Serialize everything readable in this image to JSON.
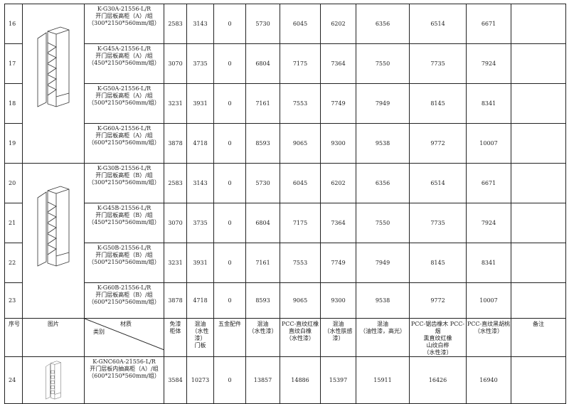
{
  "groups": [
    {
      "image": "open-shelf-tall-cabinet-a",
      "rows": [
        {
          "seq": "16",
          "name": "K-G30A-21556-L/R\n开门层板高柜（A）/组\n（300*2150*560mm/组）",
          "v": [
            "2583",
            "3143",
            "0",
            "5730",
            "6045",
            "6202",
            "6356",
            "6514",
            "6671",
            ""
          ]
        },
        {
          "seq": "17",
          "name": "K-G45A-21556-L/R\n开门层板高柜（A）/组\n（450*2150*560mm/组）",
          "v": [
            "3070",
            "3735",
            "0",
            "6804",
            "7175",
            "7364",
            "7550",
            "7735",
            "7924",
            ""
          ]
        },
        {
          "seq": "18",
          "name": "K-G50A-21556-L/R\n开门层板高柜（A）/组\n（500*2150*560mm/组）",
          "v": [
            "3231",
            "3931",
            "0",
            "7161",
            "7553",
            "7749",
            "7949",
            "8145",
            "8341",
            ""
          ]
        },
        {
          "seq": "19",
          "name": "K-G60A-21556-L/R\n开门层板高柜（A）/组\n（600*2150*560mm/组）",
          "v": [
            "3878",
            "4718",
            "0",
            "8593",
            "9065",
            "9300",
            "9538",
            "9772",
            "10007",
            ""
          ]
        }
      ]
    },
    {
      "image": "open-shelf-tall-cabinet-b",
      "rows": [
        {
          "seq": "20",
          "name": "K-G30B-21556-L/R\n开门层板高柜（B）/组\n（300*2150*560mm/组）",
          "v": [
            "2583",
            "3143",
            "0",
            "5730",
            "6045",
            "6202",
            "6356",
            "6514",
            "6671",
            ""
          ]
        },
        {
          "seq": "21",
          "name": "K-G45B-21556-L/R\n开门层板高柜（B）/组\n（450*2150*560mm/组）",
          "v": [
            "3070",
            "3735",
            "0",
            "6804",
            "7175",
            "7364",
            "7550",
            "7735",
            "7924",
            ""
          ]
        },
        {
          "seq": "22",
          "name": "K-G50B-21556-L/R\n开门层板高柜（B）/组\n（500*2150*560mm/组）",
          "v": [
            "3231",
            "3931",
            "0",
            "7161",
            "7553",
            "7749",
            "7949",
            "8145",
            "8341",
            ""
          ]
        },
        {
          "seq": "23",
          "name": "K-G60B-21556-L/R\n开门层板高柜（B）/组\n（600*2150*560mm/组）",
          "v": [
            "3878",
            "4718",
            "0",
            "8593",
            "9065",
            "9300",
            "9538",
            "9772",
            "10007",
            ""
          ]
        }
      ]
    }
  ],
  "header": {
    "seq": "序号",
    "image": "图片",
    "material": "材质",
    "category": "类别",
    "cols": [
      "免漆\n柜体",
      "混油\n（水性漆）\n门板",
      "五金配件",
      "混油\n（水性漆）",
      "PCC-直纹红橡\n直纹白橡\n（水性漆）",
      "混油\n（水性肤感\n漆）",
      "混油\n（油性漆，高光）",
      "PCC-锯齿橡木 PCC-烟\n熏直纹红橡\n山纹白桦\n（水性漆）",
      "PCC-直纹黑胡桃\n（水性漆）",
      "备注"
    ]
  },
  "last_row": {
    "seq": "24",
    "image": "inner-drawer-tall-cabinet",
    "name": "K-GNC60A-21556-L/R\n开门层板内抽高柜（A）/组\n（600*2150*560mm/组）",
    "v": [
      "3584",
      "10273",
      "0",
      "13857",
      "14886",
      "15397",
      "15911",
      "16426",
      "16940",
      ""
    ]
  }
}
